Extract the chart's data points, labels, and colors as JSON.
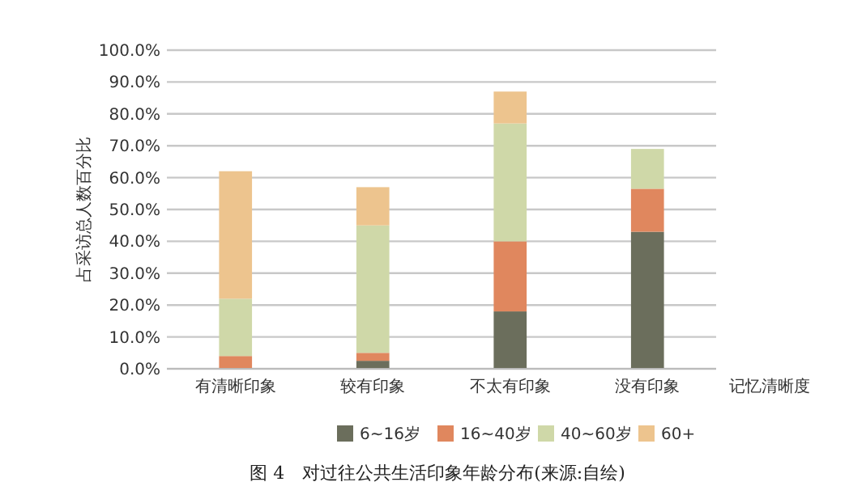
{
  "chart_data": {
    "type": "bar",
    "stacked": true,
    "xlabel": "记忆清晰度",
    "ylabel": "占采访总人数百分比",
    "categories": [
      "有清晰印象",
      "较有印象",
      "不太有印象",
      "没有印象"
    ],
    "series": [
      {
        "name": "6~16岁",
        "color": "#6b6e5c",
        "values": [
          0,
          2.5,
          18,
          43
        ]
      },
      {
        "name": "16~40岁",
        "color": "#e0875e",
        "values": [
          4,
          2.5,
          22,
          13.5
        ]
      },
      {
        "name": "40~60岁",
        "color": "#cfd8a8",
        "values": [
          18,
          40,
          37,
          12.5
        ]
      },
      {
        "name": "60+",
        "color": "#edc48e",
        "values": [
          40,
          12,
          10,
          0
        ]
      }
    ],
    "ylim": [
      0,
      100
    ],
    "yticks": [
      {
        "value": 0,
        "label": "0.0%"
      },
      {
        "value": 10,
        "label": "10.0%"
      },
      {
        "value": 20,
        "label": "20.0%"
      },
      {
        "value": 30,
        "label": "30.0%"
      },
      {
        "value": 40,
        "label": "40.0%"
      },
      {
        "value": 50,
        "label": "50.0%"
      },
      {
        "value": 60,
        "label": "60.0%"
      },
      {
        "value": 70,
        "label": "70.0%"
      },
      {
        "value": 80,
        "label": "80.0%"
      },
      {
        "value": 90,
        "label": "90.0%"
      },
      {
        "value": 100,
        "label": "100.0%"
      }
    ],
    "grid": "y",
    "legend": "bottom",
    "annotations": [
      "图 4　对过往公共生活印象年龄分布(来源:自绘)"
    ]
  }
}
